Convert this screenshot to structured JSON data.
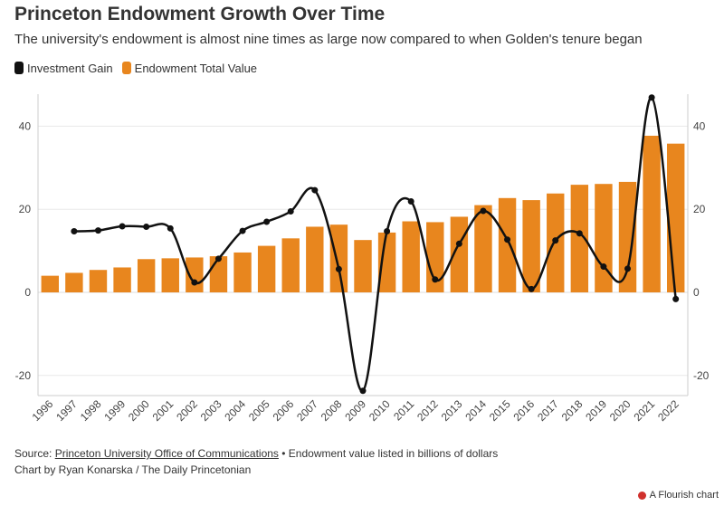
{
  "header": {
    "title": "Princeton Endowment Growth Over Time",
    "subtitle": "The university's endowment is almost nine times as large now compared to when Golden's tenure began"
  },
  "legend": [
    {
      "label": "Investment Gain",
      "color": "#111111"
    },
    {
      "label": "Endowment Total Value",
      "color": "#e8861e"
    }
  ],
  "footer": {
    "source_prefix": "Source:",
    "source_link": "Princeton University Office of Communications",
    "source_suffix": "• Endowment value listed in billions of dollars",
    "byline": "Chart by Ryan Konarska / The Daily Princetonian",
    "flourish": "A Flourish chart"
  },
  "chart_data": {
    "type": "bar+line",
    "categories": [
      "1996",
      "1997",
      "1998",
      "1999",
      "2000",
      "2001",
      "2002",
      "2003",
      "2004",
      "2005",
      "2006",
      "2007",
      "2008",
      "2009",
      "2010",
      "2011",
      "2012",
      "2013",
      "2014",
      "2015",
      "2016",
      "2017",
      "2018",
      "2019",
      "2020",
      "2021",
      "2022"
    ],
    "series": [
      {
        "name": "Endowment Total Value",
        "type": "bar",
        "color": "#e8861e",
        "values": [
          4.0,
          4.7,
          5.4,
          6.0,
          8.0,
          8.2,
          8.4,
          8.7,
          9.6,
          11.2,
          13.0,
          15.8,
          16.3,
          12.6,
          14.4,
          17.1,
          16.9,
          18.2,
          21.0,
          22.7,
          22.2,
          23.8,
          25.9,
          26.1,
          26.6,
          37.7,
          35.8
        ]
      },
      {
        "name": "Investment Gain",
        "type": "line",
        "color": "#111111",
        "values": [
          null,
          14.7,
          14.9,
          15.9,
          15.8,
          15.4,
          2.4,
          8.1,
          14.8,
          17.0,
          19.5,
          24.6,
          5.6,
          -23.7,
          14.7,
          21.9,
          3.1,
          11.7,
          19.6,
          12.7,
          0.8,
          12.5,
          14.2,
          6.2,
          5.7,
          46.9,
          -1.6
        ]
      }
    ],
    "y_ticks": [
      -20,
      0,
      20,
      40
    ],
    "ylim": [
      -25,
      48
    ],
    "title": "Princeton Endowment Growth Over Time",
    "xlabel": "",
    "ylabel": ""
  }
}
